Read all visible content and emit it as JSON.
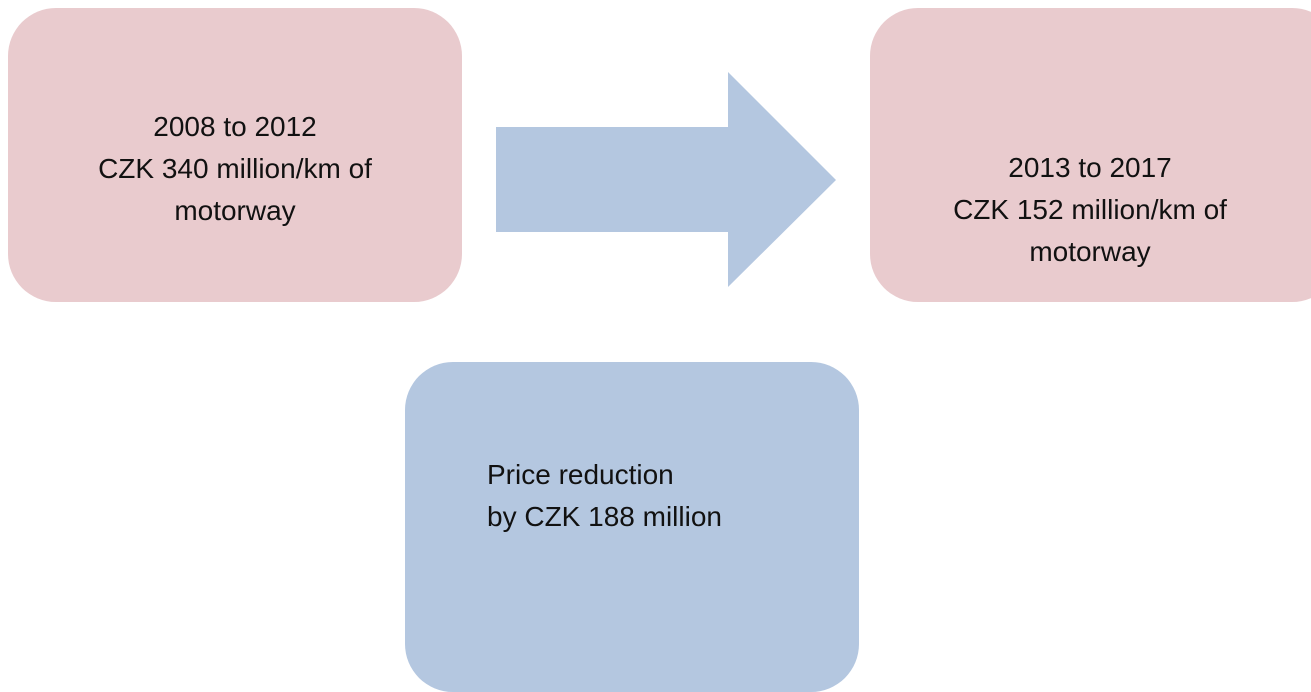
{
  "nodes": [
    {
      "period": "2008 to 2012",
      "cost": "CZK 340 million/km",
      "suffix": "of",
      "unit": "motorway"
    },
    {
      "period": "2013 to 2017",
      "cost": "CZK 152 million/km",
      "suffix": "of",
      "unit": "motorway"
    }
  ],
  "result": {
    "line1": "Price reduction",
    "prefix": "by",
    "amount": "CZK 188 million"
  }
}
